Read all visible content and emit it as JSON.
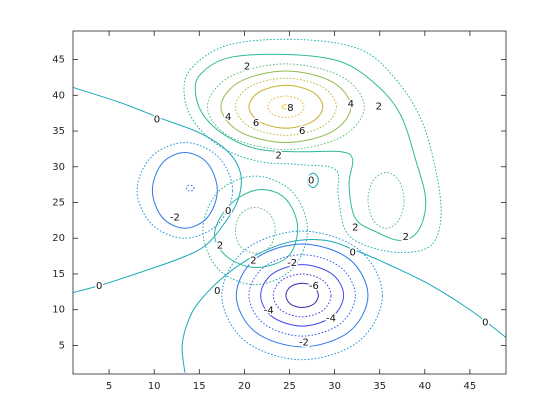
{
  "chart_data": {
    "type": "contour",
    "xlim": [
      1,
      49
    ],
    "ylim": [
      1,
      49
    ],
    "xticks": [
      5,
      10,
      15,
      20,
      25,
      30,
      35,
      40,
      45
    ],
    "yticks": [
      5,
      10,
      15,
      20,
      25,
      30,
      35,
      40,
      45
    ],
    "contours": [
      {
        "level": 0,
        "color": "#19a9b8",
        "closed": false,
        "x": [
          1.0,
          6.2,
          10.7,
          15.1,
          18.2,
          19.6,
          19.3,
          17.9,
          15.7,
          12.9,
          8.4,
          4.0,
          1.0
        ],
        "y": [
          41.1,
          39.0,
          36.8,
          34.7,
          32.1,
          28.9,
          25.4,
          22.3,
          19.0,
          17.2,
          15.2,
          13.4,
          12.4
        ]
      },
      {
        "level": 0,
        "color": "#19a9b8",
        "closed": false,
        "x": [
          13.4,
          13.1,
          13.8,
          15.1,
          17.9,
          21.2,
          25.1,
          29.0,
          32.3,
          36.2,
          40.7,
          45.1,
          49.0
        ],
        "y": [
          1.2,
          5.0,
          8.5,
          11.3,
          14.8,
          17.6,
          19.5,
          19.7,
          18.3,
          16.2,
          13.4,
          9.9,
          6.1
        ]
      },
      {
        "level": 0,
        "color": "#19a9b8",
        "closed": true,
        "x": [
          28.2,
          28.0,
          27.6,
          27.2,
          27.0,
          27.2,
          27.6,
          28.0
        ],
        "y": [
          28.1,
          28.8,
          29.1,
          28.8,
          28.1,
          27.4,
          27.1,
          27.4
        ]
      },
      {
        "level": 1,
        "color": "#1fb3ac",
        "closed": true,
        "x": [
          14.0,
          18.4,
          26.2,
          32.9,
          36.8,
          39.6,
          41.2,
          41.8,
          40.7,
          37.3,
          33.4,
          31.2,
          30.4,
          30.1,
          26.2,
          21.8,
          17.9,
          14.9,
          13.4
        ],
        "y": [
          43.6,
          47.1,
          47.8,
          46.4,
          42.2,
          36.6,
          29.6,
          23.2,
          19.0,
          18.0,
          19.0,
          21.1,
          26.0,
          29.6,
          30.3,
          30.7,
          32.4,
          35.5,
          39.4
        ]
      },
      {
        "level": 1,
        "color": "#1fb3ac",
        "closed": true,
        "x": [
          27.0,
          25.3,
          21.2,
          17.1,
          15.4,
          17.1,
          21.2,
          25.3
        ],
        "y": [
          21.1,
          26.5,
          28.7,
          26.5,
          21.1,
          15.7,
          13.5,
          15.7
        ]
      },
      {
        "level": 2,
        "color": "#2fb89a",
        "closed": true,
        "x": [
          15.1,
          18.4,
          25.1,
          30.7,
          34.6,
          37.3,
          39.0,
          40.1,
          39.3,
          37.3,
          34.6,
          32.3,
          31.6,
          32.0,
          30.7,
          26.2,
          21.8,
          18.4,
          15.7,
          14.6
        ],
        "y": [
          42.9,
          45.3,
          45.7,
          44.7,
          41.5,
          37.3,
          30.9,
          25.3,
          21.1,
          19.7,
          20.9,
          22.8,
          27.5,
          31.0,
          32.1,
          32.1,
          32.4,
          34.0,
          36.8,
          40.1
        ]
      },
      {
        "level": 2,
        "color": "#2fb89a",
        "closed": true,
        "x": [
          25.9,
          24.5,
          21.6,
          18.5,
          16.7,
          18.0,
          21.2,
          24.8
        ],
        "y": [
          21.6,
          25.6,
          26.8,
          24.8,
          20.8,
          17.5,
          15.9,
          17.4
        ]
      },
      {
        "level": 3,
        "color": "#5dbd78",
        "closed": true,
        "x": [
          33.3,
          30.8,
          24.6,
          18.4,
          15.9,
          18.4,
          24.6,
          30.8
        ],
        "y": [
          38.4,
          42.6,
          44.4,
          42.6,
          38.4,
          34.2,
          32.4,
          34.2
        ]
      },
      {
        "level": 3,
        "color": "#5dbd78",
        "closed": true,
        "x": [
          37.7,
          37.1,
          35.7,
          34.3,
          33.7,
          34.3,
          35.7,
          37.1
        ],
        "y": [
          25.3,
          28.1,
          29.2,
          28.1,
          25.3,
          22.5,
          21.4,
          22.5
        ]
      },
      {
        "level": 3,
        "color": "#5dbd78",
        "closed": true,
        "x": [
          23.4,
          22.8,
          21.2,
          19.6,
          19.0,
          19.6,
          21.2,
          22.8
        ],
        "y": [
          21.1,
          23.4,
          24.3,
          23.4,
          21.1,
          18.8,
          17.9,
          18.8
        ]
      },
      {
        "level": 4,
        "color": "#93bc50",
        "closed": true,
        "x": [
          31.8,
          29.7,
          24.6,
          19.5,
          17.4,
          19.5,
          24.6,
          29.7
        ],
        "y": [
          38.4,
          41.9,
          43.4,
          41.9,
          38.4,
          34.9,
          33.4,
          34.9
        ]
      },
      {
        "level": 5,
        "color": "#bdb93a",
        "closed": true,
        "x": [
          30.2,
          28.6,
          24.6,
          20.6,
          19.0,
          20.6,
          24.6,
          28.6
        ],
        "y": [
          38.4,
          41.2,
          42.4,
          41.2,
          38.4,
          35.6,
          34.4,
          35.6
        ]
      },
      {
        "level": 6,
        "color": "#c9ac22",
        "closed": true,
        "x": [
          28.7,
          27.5,
          24.6,
          21.7,
          20.5,
          21.7,
          24.6,
          27.5
        ],
        "y": [
          38.4,
          40.5,
          41.4,
          40.5,
          38.4,
          36.3,
          35.4,
          36.3
        ]
      },
      {
        "level": 7,
        "color": "#e3b52c",
        "closed": true,
        "x": [
          26.6,
          26.0,
          24.6,
          23.2,
          22.6,
          23.2,
          24.6,
          26.0
        ],
        "y": [
          38.4,
          39.5,
          39.9,
          39.5,
          38.4,
          37.3,
          36.9,
          37.3
        ]
      },
      {
        "level": 8,
        "color": "#f2cc26",
        "closed": true,
        "x": [
          25.0,
          24.9,
          24.6,
          24.3,
          24.2,
          24.3,
          24.6,
          24.9
        ],
        "y": [
          38.4,
          38.6,
          38.7,
          38.6,
          38.4,
          38.2,
          38.1,
          38.2
        ]
      },
      {
        "level": -1,
        "color": "#1e93d8",
        "closed": true,
        "x": [
          18.7,
          17.1,
          13.4,
          9.7,
          8.1,
          9.7,
          13.4,
          17.1
        ],
        "y": [
          26.7,
          31.4,
          33.4,
          31.4,
          26.7,
          22.0,
          20.0,
          22.0
        ]
      },
      {
        "level": -1,
        "color": "#1e93d8",
        "closed": true,
        "x": [
          35.3,
          32.7,
          26.4,
          20.1,
          17.5,
          20.1,
          26.4,
          32.7
        ],
        "y": [
          12.0,
          18.4,
          21.0,
          18.4,
          12.0,
          5.6,
          3.0,
          5.6
        ]
      },
      {
        "level": -2,
        "color": "#2a78e8",
        "closed": true,
        "x": [
          17.0,
          15.9,
          13.4,
          10.9,
          9.8,
          10.9,
          13.4,
          15.9
        ],
        "y": [
          26.7,
          30.5,
          32.0,
          30.5,
          26.7,
          22.9,
          21.4,
          22.9
        ]
      },
      {
        "level": -2,
        "color": "#2a78e8",
        "closed": true,
        "x": [
          33.7,
          31.6,
          26.4,
          21.2,
          19.1,
          21.2,
          26.4,
          31.6
        ],
        "y": [
          12.0,
          17.1,
          19.2,
          17.1,
          12.0,
          6.9,
          4.8,
          6.9
        ]
      },
      {
        "level": -3,
        "color": "#3560f4",
        "closed": true,
        "x": [
          14.4,
          14.3,
          14.0,
          13.7,
          13.6,
          13.7,
          14.0,
          14.3
        ],
        "y": [
          27.0,
          27.3,
          27.4,
          27.3,
          27.0,
          26.7,
          26.6,
          26.7
        ]
      },
      {
        "level": -3,
        "color": "#3560f4",
        "closed": true,
        "x": [
          32.3,
          30.6,
          26.4,
          22.2,
          20.5,
          22.2,
          26.4,
          30.6
        ],
        "y": [
          12.0,
          16.0,
          17.7,
          16.0,
          12.0,
          8.0,
          6.3,
          8.0
        ]
      },
      {
        "level": -4,
        "color": "#4249ee",
        "closed": true,
        "x": [
          31.0,
          29.7,
          26.4,
          23.1,
          21.8,
          23.1,
          26.4,
          29.7
        ],
        "y": [
          12.0,
          15.0,
          16.3,
          15.0,
          12.0,
          9.0,
          7.7,
          9.0
        ]
      },
      {
        "level": -5,
        "color": "#4536d8",
        "closed": true,
        "x": [
          29.6,
          28.7,
          26.4,
          24.1,
          23.2,
          24.1,
          26.4,
          28.7
        ],
        "y": [
          12.0,
          14.1,
          15.0,
          14.1,
          12.0,
          9.9,
          9.0,
          9.9
        ]
      },
      {
        "level": -6,
        "color": "#3e26a8",
        "closed": true,
        "x": [
          28.2,
          27.7,
          26.4,
          25.1,
          24.6,
          25.1,
          26.4,
          27.7
        ],
        "y": [
          12.0,
          13.2,
          13.7,
          13.2,
          12.0,
          10.8,
          10.3,
          10.8
        ]
      }
    ],
    "labels": [
      {
        "value": 2,
        "x": 20.3,
        "y": 44.0
      },
      {
        "value": 4,
        "x": 18.2,
        "y": 37.0
      },
      {
        "value": 6,
        "x": 21.3,
        "y": 36.1
      },
      {
        "value": 8,
        "x": 25.1,
        "y": 38.2
      },
      {
        "value": 6,
        "x": 26.4,
        "y": 35.0
      },
      {
        "value": 4,
        "x": 31.8,
        "y": 38.8
      },
      {
        "value": 2,
        "x": 34.9,
        "y": 38.4
      },
      {
        "value": 0,
        "x": 10.3,
        "y": 36.6
      },
      {
        "value": 2,
        "x": 23.8,
        "y": 31.6
      },
      {
        "value": 0,
        "x": 27.4,
        "y": 28.1
      },
      {
        "value": -2,
        "x": 12.3,
        "y": 22.9
      },
      {
        "value": 0,
        "x": 18.2,
        "y": 23.8
      },
      {
        "value": 2,
        "x": 32.3,
        "y": 21.5
      },
      {
        "value": 2,
        "x": 37.9,
        "y": 20.2
      },
      {
        "value": 2,
        "x": 17.3,
        "y": 19.0
      },
      {
        "value": 2,
        "x": 21.0,
        "y": 16.9
      },
      {
        "value": 0,
        "x": 32.0,
        "y": 18.0
      },
      {
        "value": -2,
        "x": 25.3,
        "y": 16.5
      },
      {
        "value": 0,
        "x": 3.9,
        "y": 13.3
      },
      {
        "value": 0,
        "x": 17.0,
        "y": 12.6
      },
      {
        "value": -6,
        "x": 27.7,
        "y": 13.3
      },
      {
        "value": -4,
        "x": 22.7,
        "y": 9.9
      },
      {
        "value": -4,
        "x": 29.6,
        "y": 8.8
      },
      {
        "value": -2,
        "x": 26.6,
        "y": 5.4
      },
      {
        "value": 0,
        "x": 46.7,
        "y": 8.2
      }
    ]
  }
}
